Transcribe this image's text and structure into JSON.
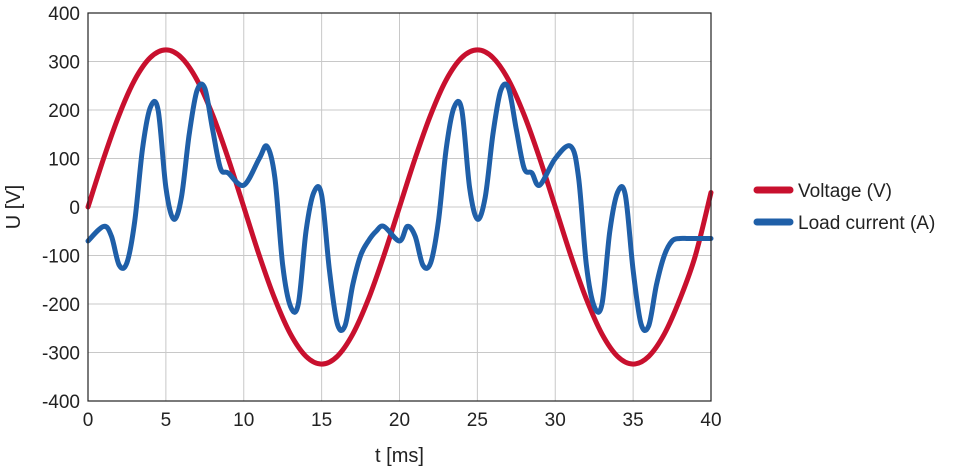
{
  "chart_data": {
    "type": "line",
    "title": "",
    "xlabel": "t [ms]",
    "ylabel": "U [V]",
    "xlim": [
      0,
      40
    ],
    "ylim": [
      -400,
      400
    ],
    "x_ticks": [
      0,
      5,
      10,
      15,
      20,
      25,
      30,
      35,
      40
    ],
    "y_ticks": [
      400,
      300,
      200,
      100,
      0,
      -100,
      -200,
      -300,
      -400
    ],
    "grid": true,
    "legend_position": "right",
    "series": [
      {
        "name": "Voltage (V)",
        "color": "#c8102e",
        "x": [
          0,
          1,
          2,
          3,
          4,
          5,
          6,
          7,
          8,
          9,
          10,
          11,
          12,
          13,
          14,
          15,
          16,
          17,
          18,
          19,
          20,
          21,
          22,
          23,
          24,
          25,
          26,
          27,
          28,
          29,
          30,
          31,
          32,
          33,
          34,
          35,
          36,
          37,
          38,
          39,
          40
        ],
        "y": [
          0,
          100,
          190,
          262,
          308,
          324,
          308,
          262,
          190,
          100,
          0,
          -100,
          -190,
          -262,
          -308,
          -324,
          -308,
          -262,
          -190,
          -100,
          0,
          100,
          190,
          262,
          308,
          324,
          308,
          262,
          190,
          100,
          0,
          -100,
          -190,
          -262,
          -308,
          -324,
          -308,
          -262,
          -190,
          -100,
          30
        ]
      },
      {
        "name": "Load current (A)",
        "color": "#1f5fa8",
        "x": [
          0,
          1,
          1.5,
          2,
          2.5,
          3,
          3.5,
          4,
          4.5,
          5,
          5.5,
          6,
          6.5,
          7,
          7.5,
          8,
          8.5,
          9,
          10,
          11,
          11.5,
          12,
          12.5,
          13,
          13.5,
          14,
          14.5,
          15,
          15.5,
          16,
          16.5,
          17,
          17.5,
          18,
          18.5,
          19,
          20,
          20.5,
          21,
          21.5,
          22,
          22.5,
          23,
          23.5,
          24,
          24.5,
          25,
          25.5,
          26,
          26.5,
          27,
          27.5,
          28,
          28.5,
          29,
          30,
          31,
          31.5,
          32,
          32.5,
          33,
          33.5,
          34,
          34.5,
          35,
          35.5,
          36,
          36.5,
          37,
          37.5,
          38,
          38.5,
          39,
          40
        ],
        "y": [
          -70,
          -40,
          -60,
          -120,
          -115,
          -30,
          120,
          205,
          200,
          40,
          -25,
          20,
          150,
          240,
          245,
          160,
          80,
          70,
          45,
          100,
          125,
          60,
          -120,
          -205,
          -200,
          -50,
          30,
          25,
          -130,
          -240,
          -245,
          -160,
          -100,
          -70,
          -50,
          -40,
          -70,
          -40,
          -60,
          -120,
          -115,
          -30,
          120,
          205,
          200,
          40,
          -25,
          20,
          150,
          240,
          245,
          160,
          80,
          70,
          45,
          100,
          125,
          60,
          -120,
          -205,
          -200,
          -50,
          30,
          25,
          -130,
          -240,
          -245,
          -160,
          -100,
          -70,
          -65,
          -65,
          -65,
          -65
        ]
      }
    ]
  }
}
